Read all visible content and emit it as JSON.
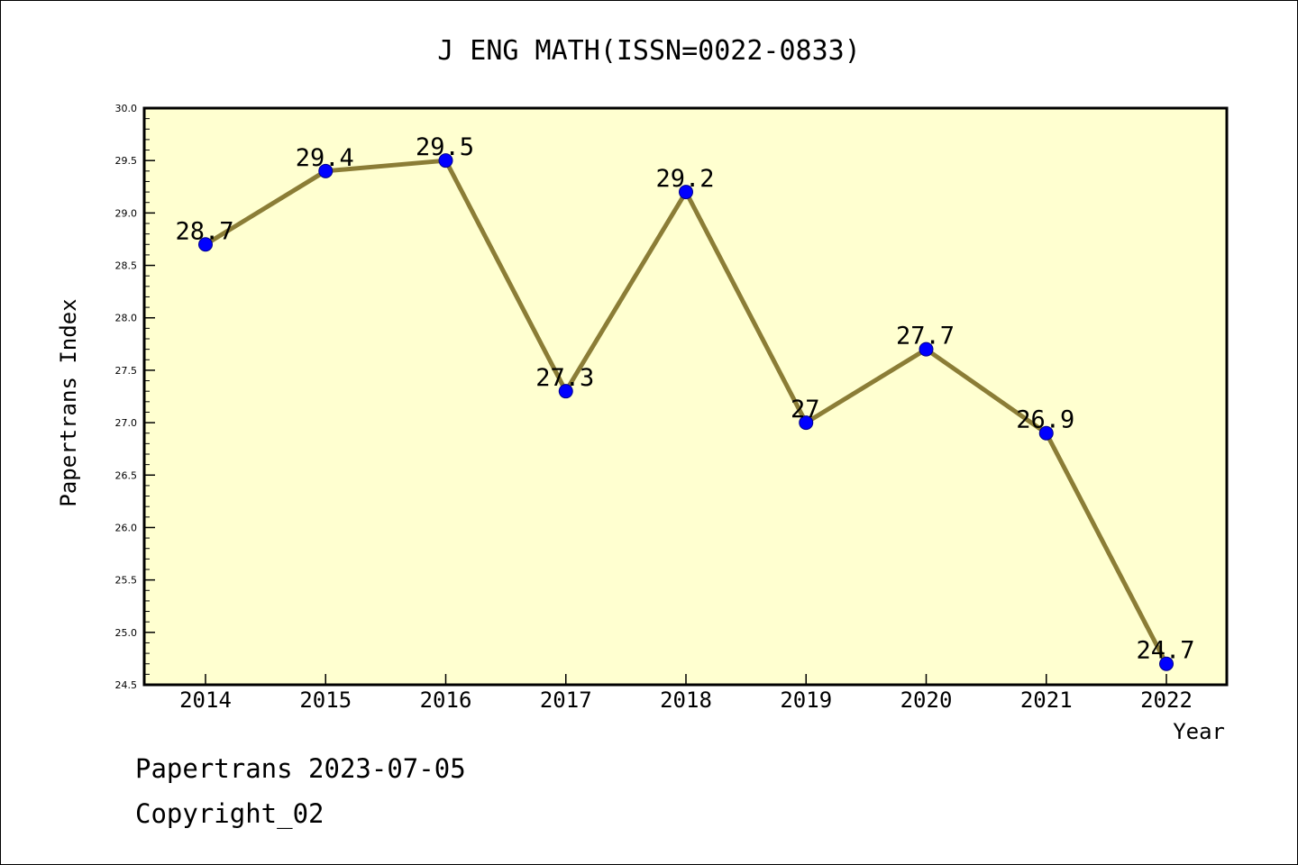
{
  "footer": {
    "line1": "Papertrans 2023-07-05",
    "line2": "Copyright_02"
  },
  "colors": {
    "plot_background": "#ffffd0",
    "line": "#8b7d36",
    "marker": "#0000ff",
    "axis": "#000000"
  },
  "chart_data": {
    "type": "line",
    "title": "J ENG MATH(ISSN=0022-0833)",
    "xlabel": "Year",
    "ylabel": "Papertrans Index",
    "categories": [
      "2014",
      "2015",
      "2016",
      "2017",
      "2018",
      "2019",
      "2020",
      "2021",
      "2022"
    ],
    "series": [
      {
        "values": [
          28.7,
          29.4,
          29.5,
          27.3,
          29.2,
          27.0,
          27.7,
          26.9,
          24.7
        ],
        "labels": [
          "28.7",
          "29.4",
          "29.5",
          "27.3",
          "29.2",
          "27",
          "27.7",
          "26.9",
          "24.7"
        ]
      }
    ],
    "ylim": [
      24.5,
      30.0
    ],
    "yticks": [
      "24.5",
      "25.0",
      "25.5",
      "26.0",
      "26.5",
      "27.0",
      "27.5",
      "28.0",
      "28.5",
      "29.0",
      "29.5",
      "30.0"
    ],
    "grid": false,
    "legend": "none"
  }
}
